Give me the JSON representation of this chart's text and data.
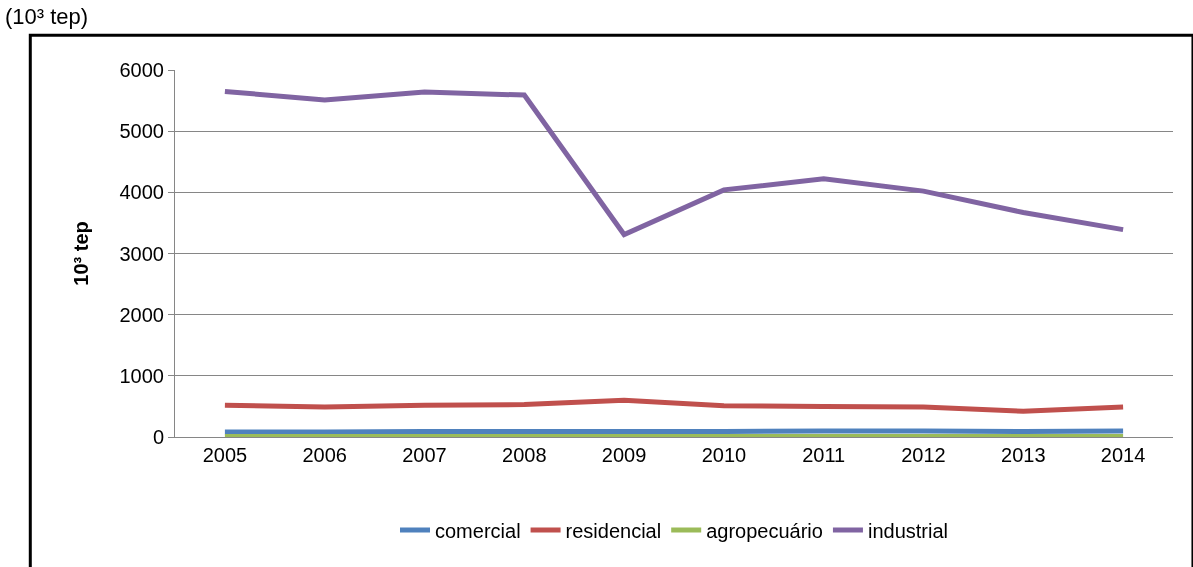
{
  "chart_data": {
    "type": "line",
    "ylabel": "10³ tep",
    "annotations": [
      "(10³ tep)"
    ],
    "categories": [
      "2005",
      "2006",
      "2007",
      "2008",
      "2009",
      "2010",
      "2011",
      "2012",
      "2013",
      "2014"
    ],
    "series": [
      {
        "name": "comercial",
        "color": "#4f81bd",
        "values": [
          80,
          80,
          90,
          90,
          90,
          90,
          100,
          100,
          90,
          100
        ]
      },
      {
        "name": "residencial",
        "color": "#c0504d",
        "values": [
          520,
          490,
          520,
          530,
          600,
          510,
          500,
          490,
          420,
          490
        ]
      },
      {
        "name": "agropecuário",
        "color": "#9bbb59",
        "values": [
          10,
          10,
          10,
          10,
          10,
          10,
          10,
          10,
          10,
          10
        ]
      },
      {
        "name": "industrial",
        "color": "#8064a2",
        "values": [
          5650,
          5510,
          5640,
          5590,
          3310,
          4040,
          4220,
          4020,
          3670,
          3390
        ]
      }
    ],
    "ylim": [
      0,
      6000
    ],
    "yticks": [
      0,
      1000,
      2000,
      3000,
      4000,
      5000,
      6000
    ],
    "grid": "y",
    "legend": "bottom",
    "marker": "none",
    "line_style": "solid"
  }
}
